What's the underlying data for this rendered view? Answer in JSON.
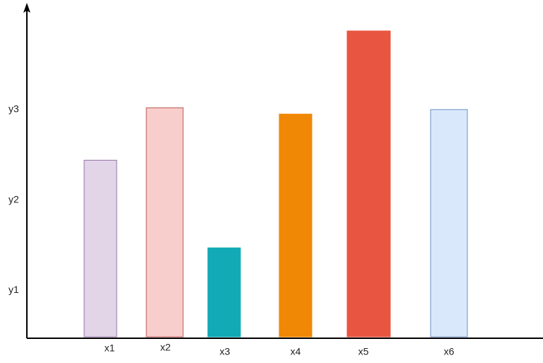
{
  "chart_data": {
    "type": "bar",
    "categories": [
      "x1",
      "x2",
      "x3",
      "x4",
      "x5",
      "x6"
    ],
    "values": [
      2.44,
      3.02,
      1.47,
      2.95,
      3.87,
      3.0
    ],
    "colors": [
      "#e1d5e7",
      "#f8cecc",
      "#12aab5",
      "#f08705",
      "#e85642",
      "#dae8fc"
    ],
    "edge_colors": [
      "#9673a6",
      "#b85450",
      "#12aab5",
      "#f08705",
      "#e85642",
      "#6c8ebf"
    ],
    "ylim": [
      0.47,
      4.15
    ],
    "yticks": [
      {
        "value": 1,
        "label": "y1"
      },
      {
        "value": 2,
        "label": "y2"
      },
      {
        "value": 3,
        "label": "y3"
      }
    ],
    "grid": false
  }
}
